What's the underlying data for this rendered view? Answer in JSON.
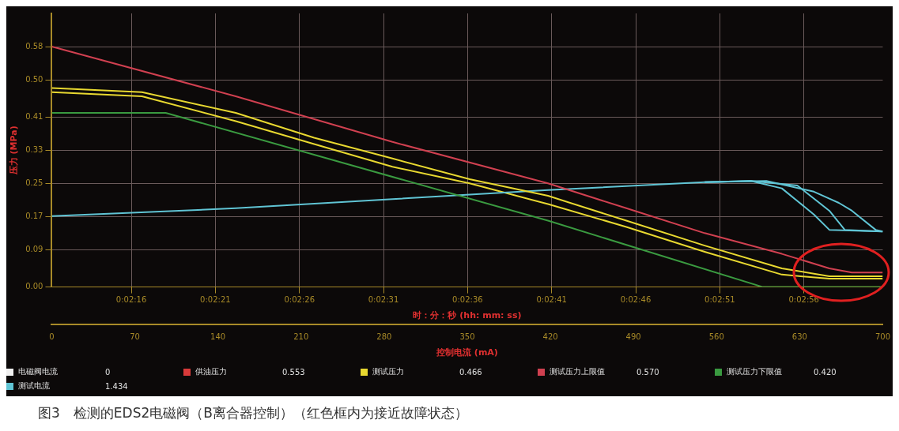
{
  "chart_data": {
    "type": "line",
    "ylabel": "压力 (MPa)",
    "xlabel": "控制电流 (mA)",
    "x2label": "时：分：秒 (hh: mm: ss)",
    "xlim": [
      0,
      700
    ],
    "xticks": [
      0,
      70,
      140,
      210,
      280,
      350,
      420,
      490,
      560,
      630,
      700
    ],
    "x2lim": [
      0.036464,
      0.050192
    ],
    "x2ticks": [
      {
        "value": 0.037778,
        "label": "0:02:16"
      },
      {
        "value": 0.039167,
        "label": "0:02:21"
      },
      {
        "value": 0.040556,
        "label": "0:02:26"
      },
      {
        "value": 0.041944,
        "label": "0:02:31"
      },
      {
        "value": 0.043333,
        "label": "0:02:36"
      },
      {
        "value": 0.044722,
        "label": "0:02:41"
      },
      {
        "value": 0.046111,
        "label": "0:02:46"
      },
      {
        "value": 0.0475,
        "label": "0:02:51"
      },
      {
        "value": 0.048889,
        "label": "0:02:56"
      }
    ],
    "ylim": [
      0,
      0.66
    ],
    "yticks": [
      {
        "value": 0,
        "label": "0.00"
      },
      0.09,
      0.17,
      0.25,
      0.33,
      0.41,
      {
        "value": 0.5,
        "label": "0.50"
      },
      0.58
    ],
    "grid": true,
    "legend": "bottom",
    "marker": "none",
    "line_style": "solid",
    "series": [
      {
        "name": "电磁阀电流",
        "color": "#f0f0f0"
      },
      {
        "name": "供油压力",
        "color": "#d83a3a"
      },
      {
        "name": "测试压力",
        "color": "#e8d830",
        "x": [
          0,
          76,
          155,
          221,
          287,
          352,
          418,
          484,
          550,
          615,
          655,
          700
        ],
        "values": [
          0.48,
          0.47,
          0.42,
          0.36,
          0.31,
          0.26,
          0.22,
          0.16,
          0.1,
          0.045,
          0.026,
          0.026
        ]
      },
      {
        "name": "测试压力上限值",
        "color": "#d04050",
        "x": [
          0,
          155,
          287,
          418,
          484,
          550,
          615,
          655,
          674,
          700
        ],
        "values": [
          0.58,
          0.46,
          0.35,
          0.25,
          0.19,
          0.13,
          0.08,
          0.045,
          0.035,
          0.035
        ]
      },
      {
        "name": "测试压力下限值",
        "color": "#3a9a40",
        "x": [
          0,
          96,
          418,
          599,
          700
        ],
        "values": [
          0.42,
          0.42,
          0.16,
          0,
          0
        ]
      },
      {
        "name": "测试电流",
        "color": "#60c4d4",
        "x": [
          0,
          155,
          287,
          418,
          550,
          589,
          615,
          642,
          655,
          700
        ],
        "values": [
          0.171,
          0.19,
          0.212,
          0.234,
          0.253,
          0.256,
          0.238,
          0.175,
          0.138,
          0.134
        ]
      },
      {
        "color": "#e8d830",
        "x": [
          0,
          76,
          155,
          221,
          287,
          352,
          418,
          484,
          550,
          615,
          655,
          700
        ],
        "values": [
          0.47,
          0.46,
          0.4,
          0.345,
          0.29,
          0.25,
          0.2,
          0.145,
          0.085,
          0.03,
          0.02,
          0.02
        ]
      },
      {
        "color": "#60c4d4",
        "x": [
          550,
          589,
          628,
          655,
          668,
          700
        ],
        "values": [
          0.253,
          0.256,
          0.245,
          0.184,
          0.138,
          0.134
        ]
      },
      {
        "color": "#60c4d4",
        "x": [
          550,
          602,
          642,
          663,
          674,
          694,
          700
        ],
        "values": [
          0.253,
          0.256,
          0.23,
          0.203,
          0.184,
          0.138,
          0.134
        ]
      }
    ],
    "annotations": [
      "0",
      "0.553",
      "0.466",
      "0.570",
      "0.420",
      "1.434",
      "图3　检测的EDS2电磁阀（B离合器控制）（红色框内为接近故障状态）"
    ]
  }
}
